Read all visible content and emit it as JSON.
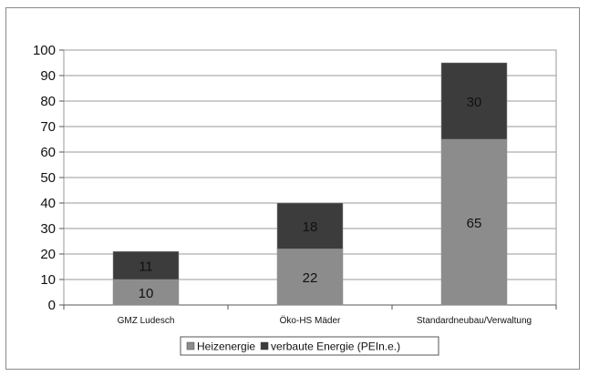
{
  "chart_data": {
    "type": "bar",
    "stacked": true,
    "title": "",
    "xlabel": "",
    "ylabel": "",
    "categories": [
      "GMZ Ludesch",
      "Öko-HS Mäder",
      "Standardneubau/Verwaltung"
    ],
    "series": [
      {
        "name": "Heizenergie",
        "values": [
          10,
          22,
          65
        ],
        "color": "#8c8c8c"
      },
      {
        "name": "verbaute Energie (PEIn.e.)",
        "values": [
          11,
          18,
          30
        ],
        "color": "#3c3c3c"
      }
    ],
    "ylim": [
      0,
      100
    ],
    "yticks": [
      0,
      10,
      20,
      30,
      40,
      50,
      60,
      70,
      80,
      90,
      100
    ],
    "grid": true,
    "legend_position": "bottom"
  }
}
